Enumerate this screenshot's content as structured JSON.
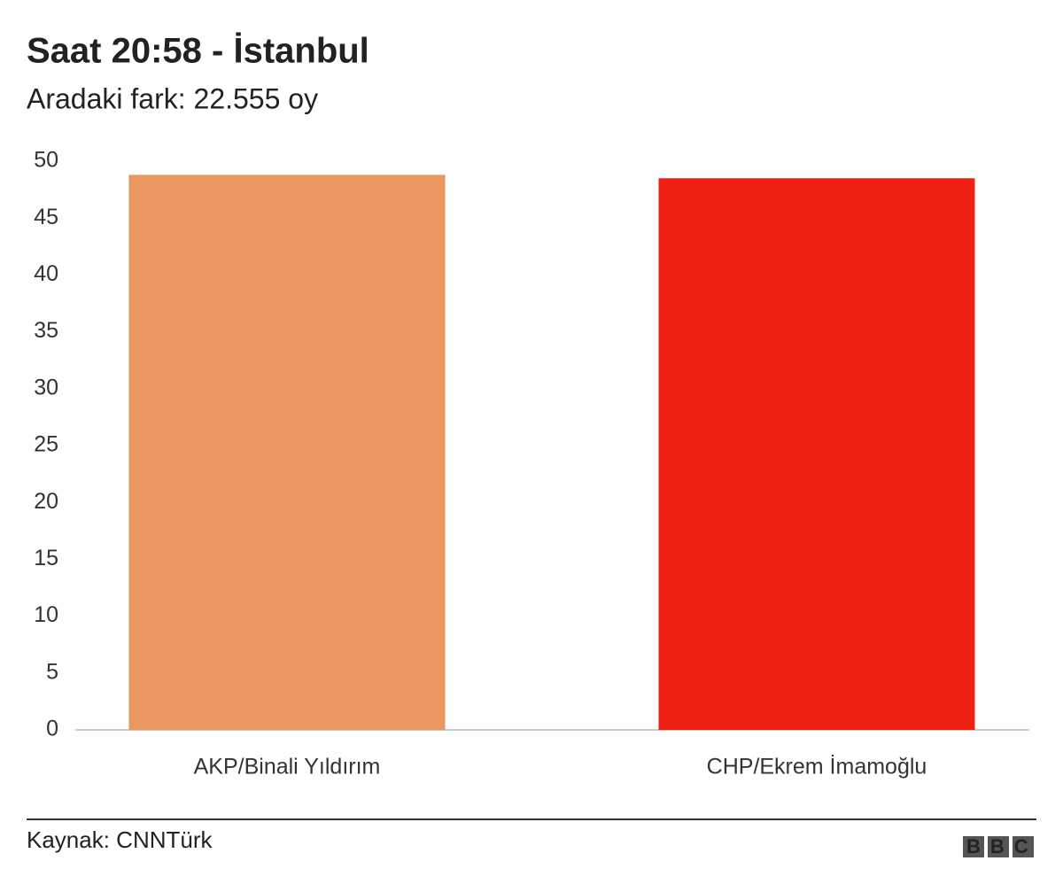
{
  "chart_data": {
    "type": "bar",
    "title": "Saat 20:58 - İstanbul",
    "subtitle": "Aradaki fark: 22.555 oy",
    "categories": [
      "AKP/Binali Yıldırım",
      "CHP/Ekrem İmamoğlu"
    ],
    "values": [
      48.8,
      48.5
    ],
    "colors": [
      "#ea9660",
      "#ee2112"
    ],
    "ylim": [
      0,
      50
    ],
    "yticks": [
      0,
      5,
      10,
      15,
      20,
      25,
      30,
      35,
      40,
      45,
      50
    ],
    "grid": false,
    "source": "Kaynak: CNNTürk",
    "logo": "BBC"
  }
}
